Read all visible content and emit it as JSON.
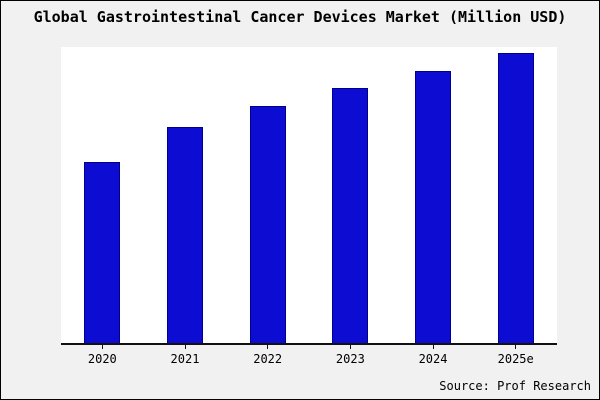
{
  "page": {
    "title": "Global Gastrointestinal Cancer Devices Market (Million USD)",
    "source": "Source: Prof Research"
  },
  "colors": {
    "background": "#f1f1f1",
    "plot_background": "#ffffff",
    "axis": "#111111",
    "bar_fill": "#0c0cd2",
    "bar_border": "#00008b"
  },
  "chart_data": {
    "type": "bar",
    "title": "Global Gastrointestinal Cancer Devices Market (Million USD)",
    "categories": [
      "2020",
      "2021",
      "2022",
      "2023",
      "2024",
      "2025e"
    ],
    "values": [
      61,
      73,
      80,
      86,
      92,
      98
    ],
    "xlabel": "",
    "ylabel": "",
    "ylim": [
      0,
      100
    ],
    "grid": false,
    "legend": false,
    "y_axis_labels_visible": false,
    "source": "Source: Prof Research"
  }
}
